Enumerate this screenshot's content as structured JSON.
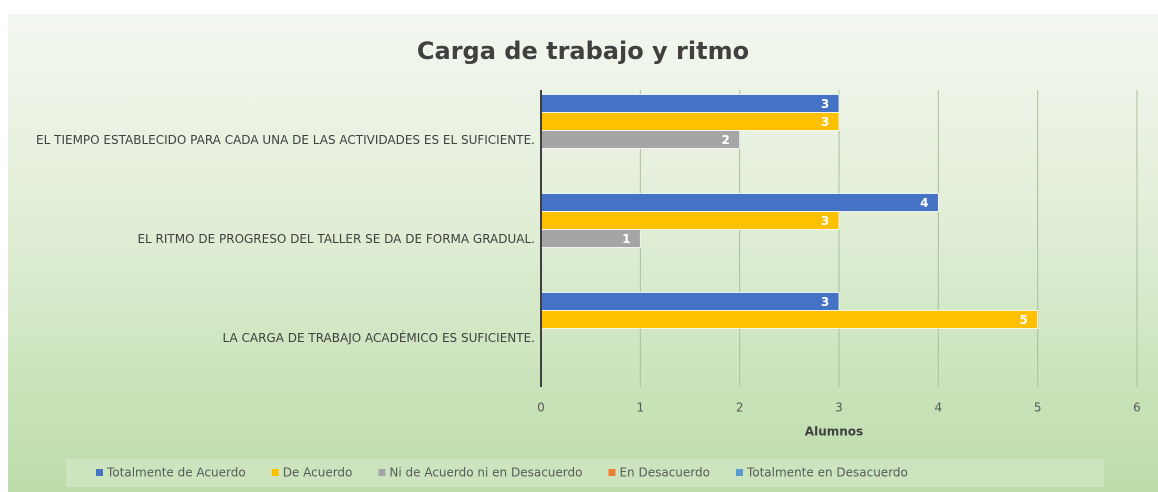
{
  "chart_data": {
    "type": "bar",
    "orientation": "horizontal",
    "title": "Carga de trabajo y ritmo",
    "x_label": "Alumnos",
    "categories": [
      "EL TIEMPO ESTABLECIDO PARA CADA UNA DE LAS ACTIVIDADES ES EL SUFICIENTE.",
      "EL RITMO DE PROGRESO DEL TALLER SE DA DE FORMA GRADUAL.",
      "LA CARGA DE TRABAJO ACADÉMICO ES SUFICIENTE."
    ],
    "series": [
      {
        "name": "Totalmente de Acuerdo",
        "color": "#4472c4",
        "values": [
          3,
          4,
          3
        ]
      },
      {
        "name": "De Acuerdo",
        "color": "#ffc000",
        "values": [
          3,
          3,
          5
        ]
      },
      {
        "name": "Ni de Acuerdo ni en Desacuerdo",
        "color": "#a5a5a5",
        "values": [
          2,
          1,
          null
        ]
      },
      {
        "name": "En Desacuerdo",
        "color": "#ed7d31",
        "values": [
          null,
          null,
          null
        ]
      },
      {
        "name": "Totalmente en Desacuerdo",
        "color": "#5b9bd5",
        "values": [
          null,
          null,
          null
        ]
      }
    ],
    "xlim": [
      0,
      6
    ],
    "xticks": [
      0,
      1,
      2,
      3,
      4,
      5,
      6
    ],
    "grid": true,
    "legend": "bottom"
  }
}
